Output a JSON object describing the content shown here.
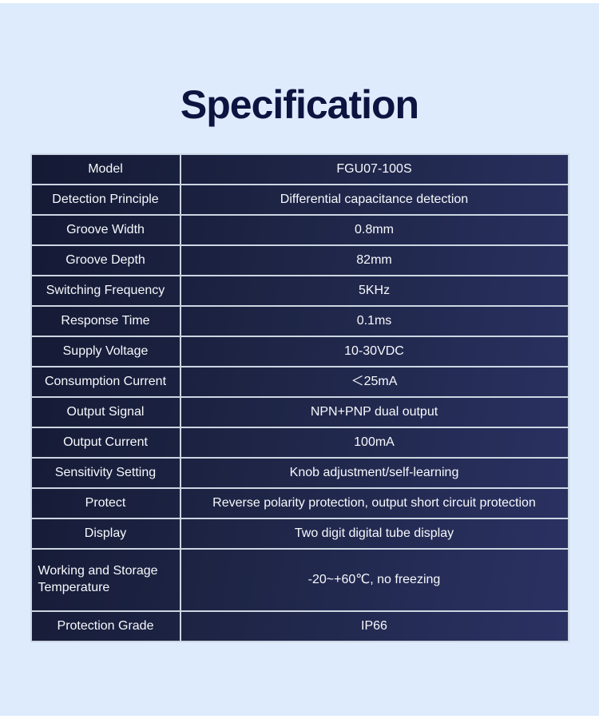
{
  "page": {
    "title": "Specification",
    "colors": {
      "background": "#ddebfc",
      "title": "#0d1440",
      "table_gradient_dark": "#141a34",
      "table_gradient_light": "#2b3263",
      "separator": "#ccd6e2",
      "cell_text": "#f7f9fc"
    }
  },
  "table": {
    "rows": [
      {
        "label": "Model",
        "value": "FGU07-100S"
      },
      {
        "label": "Detection Principle",
        "value": "Differential capacitance detection"
      },
      {
        "label": "Groove Width",
        "value": "0.8mm"
      },
      {
        "label": "Groove Depth",
        "value": "82mm"
      },
      {
        "label": "Switching Frequency",
        "value": "5KHz"
      },
      {
        "label": "Response Time",
        "value": "0.1ms"
      },
      {
        "label": "Supply Voltage",
        "value": "10-30VDC"
      },
      {
        "label": "Consumption Current",
        "value": "＜25mA"
      },
      {
        "label": "Output Signal",
        "value": "NPN+PNP dual output"
      },
      {
        "label": "Output Current",
        "value": "100mA"
      },
      {
        "label": "Sensitivity Setting",
        "value": "Knob adjustment/self-learning"
      },
      {
        "label": "Protect",
        "value": "Reverse polarity protection, output short circuit protection"
      },
      {
        "label": "Display",
        "value": "Two digit digital tube display"
      },
      {
        "label": "Working and Storage Temperature",
        "value": "-20~+60℃, no freezing",
        "tall": true,
        "label_align": "left"
      },
      {
        "label": "Protection Grade",
        "value": "IP66"
      }
    ]
  }
}
